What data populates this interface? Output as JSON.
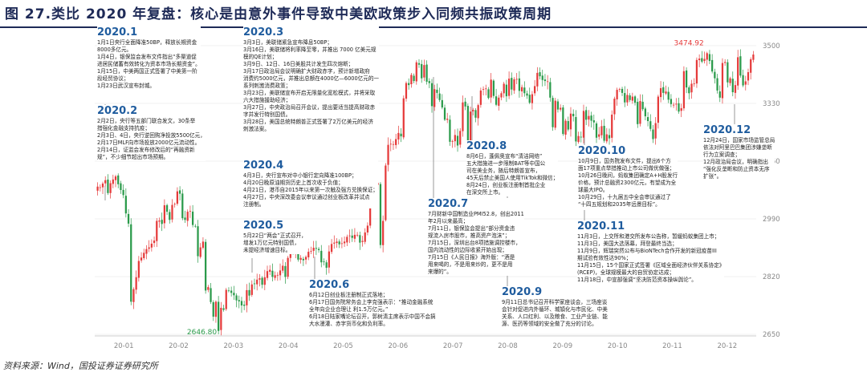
{
  "title": "图 27.类比 2020 年复盘：核心是由意外事件导致中美欧政策步入同频共振政策周期",
  "source": "资料来源：Wind，国投证券证券研究所",
  "colors": {
    "up": "#e53a3a",
    "down": "#2a9a4a",
    "title": "#1e2a57",
    "annotation_title": "#1f5c9e",
    "grid": "#e6e6e6"
  },
  "chart_data": {
    "type": "candlestick",
    "y_ticks": [
      2650,
      2820,
      2990,
      3160,
      3330,
      3500
    ],
    "ylim": [
      2650,
      3500
    ],
    "x_ticks": [
      "20-01",
      "20-02",
      "20-03",
      "20-04",
      "20-05",
      "20-06",
      "20-07",
      "20-08",
      "20-09",
      "20-10",
      "20-11",
      "20-12"
    ],
    "min_label": "2646.80",
    "max_label": "3474.92",
    "series_closes": [
      3085,
      3083,
      3094,
      3104,
      3066,
      3095,
      3106,
      3115,
      3092,
      3075,
      3060,
      3006,
      2976,
      2746,
      2783,
      2818,
      2866,
      2876,
      2890,
      2901,
      2906,
      2917,
      2926,
      2984,
      2985,
      2975,
      3030,
      3011,
      2987,
      3031,
      3034,
      3071,
      3064,
      2992,
      2987,
      3011,
      3013,
      2972,
      2968,
      2880,
      2906,
      2923,
      2779,
      2789,
      2745,
      2702,
      2746,
      2660,
      2728,
      2722,
      2781,
      2778,
      2772,
      2765,
      2750,
      2747,
      2735,
      2734,
      2780,
      2764,
      2797,
      2798,
      2811,
      2815,
      2796,
      2818,
      2836,
      2840,
      2819,
      2824,
      2825,
      2838,
      2852,
      2819,
      2875,
      2894,
      2889,
      2897,
      2870,
      2875,
      2868,
      2878,
      2893,
      2895,
      2905,
      2902,
      2898,
      2862,
      2863,
      2846,
      2894,
      2916,
      2920,
      2923,
      2915,
      2918,
      2923,
      2937,
      2941,
      2934,
      2943,
      2943,
      2920,
      2925,
      2950,
      2970,
      3033,
      3036,
      3091,
      3095,
      2913,
      2984,
      3147,
      3208,
      3211,
      3210,
      3225,
      3243,
      3233,
      3345,
      3390,
      3384,
      3414,
      3396,
      3451,
      3444,
      3404,
      3443,
      3394,
      3390,
      3322,
      3372,
      3361,
      3340,
      3318,
      3282,
      3285,
      3217,
      3219,
      3237,
      3206,
      3249,
      3333,
      3321,
      3219,
      3306,
      3311,
      3288,
      3325,
      3368,
      3372,
      3374,
      3346,
      3400,
      3352,
      3326,
      3347,
      3360,
      3388,
      3351,
      3403,
      3371,
      3401,
      3402,
      3367,
      3378,
      3360,
      3353,
      3332,
      3357,
      3381,
      3420,
      3410,
      3399,
      3396,
      3395,
      3347,
      3260,
      3338,
      3312,
      3317,
      3240,
      3279,
      3253,
      3300,
      3292,
      3218,
      3234,
      3231,
      3308,
      3282,
      3293,
      3279,
      3274,
      3229,
      3239,
      3263,
      3220,
      3239,
      3227,
      3297,
      3344,
      3370,
      3372,
      3361,
      3333,
      3355,
      3340,
      3350,
      3332,
      3269,
      3337,
      3313,
      3292,
      3278,
      3255,
      3225,
      3272,
      3350,
      3375,
      3361,
      3365,
      3341,
      3328,
      3326,
      3329,
      3306,
      3316,
      3425,
      3377,
      3360,
      3388,
      3389,
      3458,
      3462,
      3453,
      3461,
      3478,
      3455,
      3424,
      3404,
      3368,
      3347,
      3449,
      3452,
      3392,
      3404,
      3363,
      3384,
      3466,
      3412,
      3383,
      3395,
      3422,
      3460,
      3474
    ],
    "annotations": [
      {
        "title": "2020.1",
        "lines": [
          "1月1日央行全面降准50BP，释放长期资金",
          "8000多亿元。",
          "1月4日，银保监会发布文件指出“多渠道促",
          "进居民储蓄有效转化为资本市场长期资金”。",
          "1月15日，中美两国正式签署了中美第一阶",
          "段经贸协议；",
          "1月23日武汉宣布封城。"
        ]
      },
      {
        "title": "2020.2",
        "lines": [
          "2月2日，央行等五部门联合发文，30条举",
          "措强化金融支持抗疫；",
          "2月3日、4日，央行逆回购净投放5500亿元，",
          "2月17日MLF向市场投放2000亿元流动性。",
          "2月14日，证监会发布修改后的“再融资新",
          "规”，不少细节超出市场预期。"
        ]
      },
      {
        "title": "2020.3",
        "lines": [
          "3月3日，美联储紧急宣布降息50BP；",
          "3月16日，美联储将利率降至零，并推出 7000 亿美元规",
          "模的QE计划；",
          "3月9日、12日、16日美股共计发生四次熔断；",
          "3月17日政治局会议明确扩大财政赤字，预计新增政府",
          "消费约5000亿元，并推出总额在4000亿—6000亿元的一",
          "系列刺激消费政策；",
          "3月23日，美联储宣布开启无限量化宽松模式，并将采取",
          "六大措施援助经济；",
          "3月27日，中央政治局召开会议，提出要适当提高财政赤",
          "字并发行特别国债。",
          "3月28日，美国总统特朗普正式签署了2万亿美元的经济",
          "刺激法案。"
        ]
      },
      {
        "title": "2020.4",
        "lines": [
          "4月3日，央行宣布对中小银行定向降准100BP；",
          "4月20日晚原油期货历史上首次收于负值；",
          "4月21日，港币自2015年以来第一次触及强方兑换保证；",
          "4月27日，中央深改委会议审议通过创业板改革并试点",
          "注册制。"
        ]
      },
      {
        "title": "2020.5",
        "lines": [
          "5月22日“两会”正式召开，",
          "增发1万亿元特别国债，",
          "未提经济增速目标。"
        ]
      },
      {
        "title": "2020.6",
        "lines": [
          "6月12日创业板注册制正式落地；",
          "6月17日国务院常务会上李克强表示：“推动金融系统",
          "全年向企业合理让 利1.5万亿元。”",
          "6月18日陆家嘴论坛召开，郭树清主席表示中国不会搞",
          "大水漫灌、赤字货币化和负利率。"
        ]
      },
      {
        "title": "2020.7",
        "lines": [
          "7月财新中国制造业PMI52.8，创出2011",
          "年2月以来最高；",
          "7月11日，银保监会提出“部分资金违",
          "规流入房市股市，推高资产泡沫”；",
          "7月15日，深圳出台8项措施调控楼市，",
          "国内流动性的边际收紧开始出现；",
          "7月15日《人民日报》海外版：“酒是",
          "用来喝的，不是用来炒的，更不是用",
          "来爆的”。"
        ]
      },
      {
        "title": "2020.8",
        "lines": [
          "8月6日，蓬佩奥宣布“清洁网络”",
          "五大措施进一步限制BAT等中国公",
          "司在美业务，随后特朗普宣布，",
          "45天后禁止美国人使用TikTok和微信；",
          "8月24日，创业板注册制首批企业",
          "在深交所上市。"
        ]
      },
      {
        "title": "2020.9",
        "lines": [
          "9月11日总书记召开科学家座谈会，三场座谈",
          "会针对促进内外循环、城镇化与市民化、中美",
          "关系、人口红利、以及粮食、工业产业链、能",
          "源、医药等领域的安全做了充分的讨论。"
        ]
      },
      {
        "title": "2020.10",
        "lines": [
          "10月9日，国务院发布文件，提出6个方",
          "面17项重点举措推动上市公司做优做强；",
          "10月26日晚间，蚂蚁集团确定A+H股发行",
          "价格，预计总融资2300亿元，有望成为全",
          "球最大IPO。",
          "10月29日，十九届五中全会审议通过了",
          "“十四五规划和2035年远景目标”。"
        ]
      },
      {
        "title": "2020.11",
        "lines": [
          "11月3日，上交所和港交所发布公告称，暂缓蚂蚁集团上市；",
          "11月3日，美国大选落幕，拜登最终当选；",
          "11月9日，辉瑞突然公布与BioNTech合作开发的新冠疫苗III",
          "期试验有效性达90%；",
          "11月15日，15个国家正式签署《区域全面经济伙伴关系协定》",
          "(RCEP)，全球规模最大的自贸协定达成；",
          "11月18日，中宣部强调“坚决防范资本操纵舆论”。"
        ]
      },
      {
        "title": "2020.12",
        "lines": [
          "12月24日，国家市场监管总局",
          "依法对阿里巴巴集团涉嫌垄断",
          "行为立案调查；",
          "12月政治局会议，明确指出",
          "“强化反垄断和防止资本无序",
          "扩张”。"
        ]
      }
    ]
  }
}
